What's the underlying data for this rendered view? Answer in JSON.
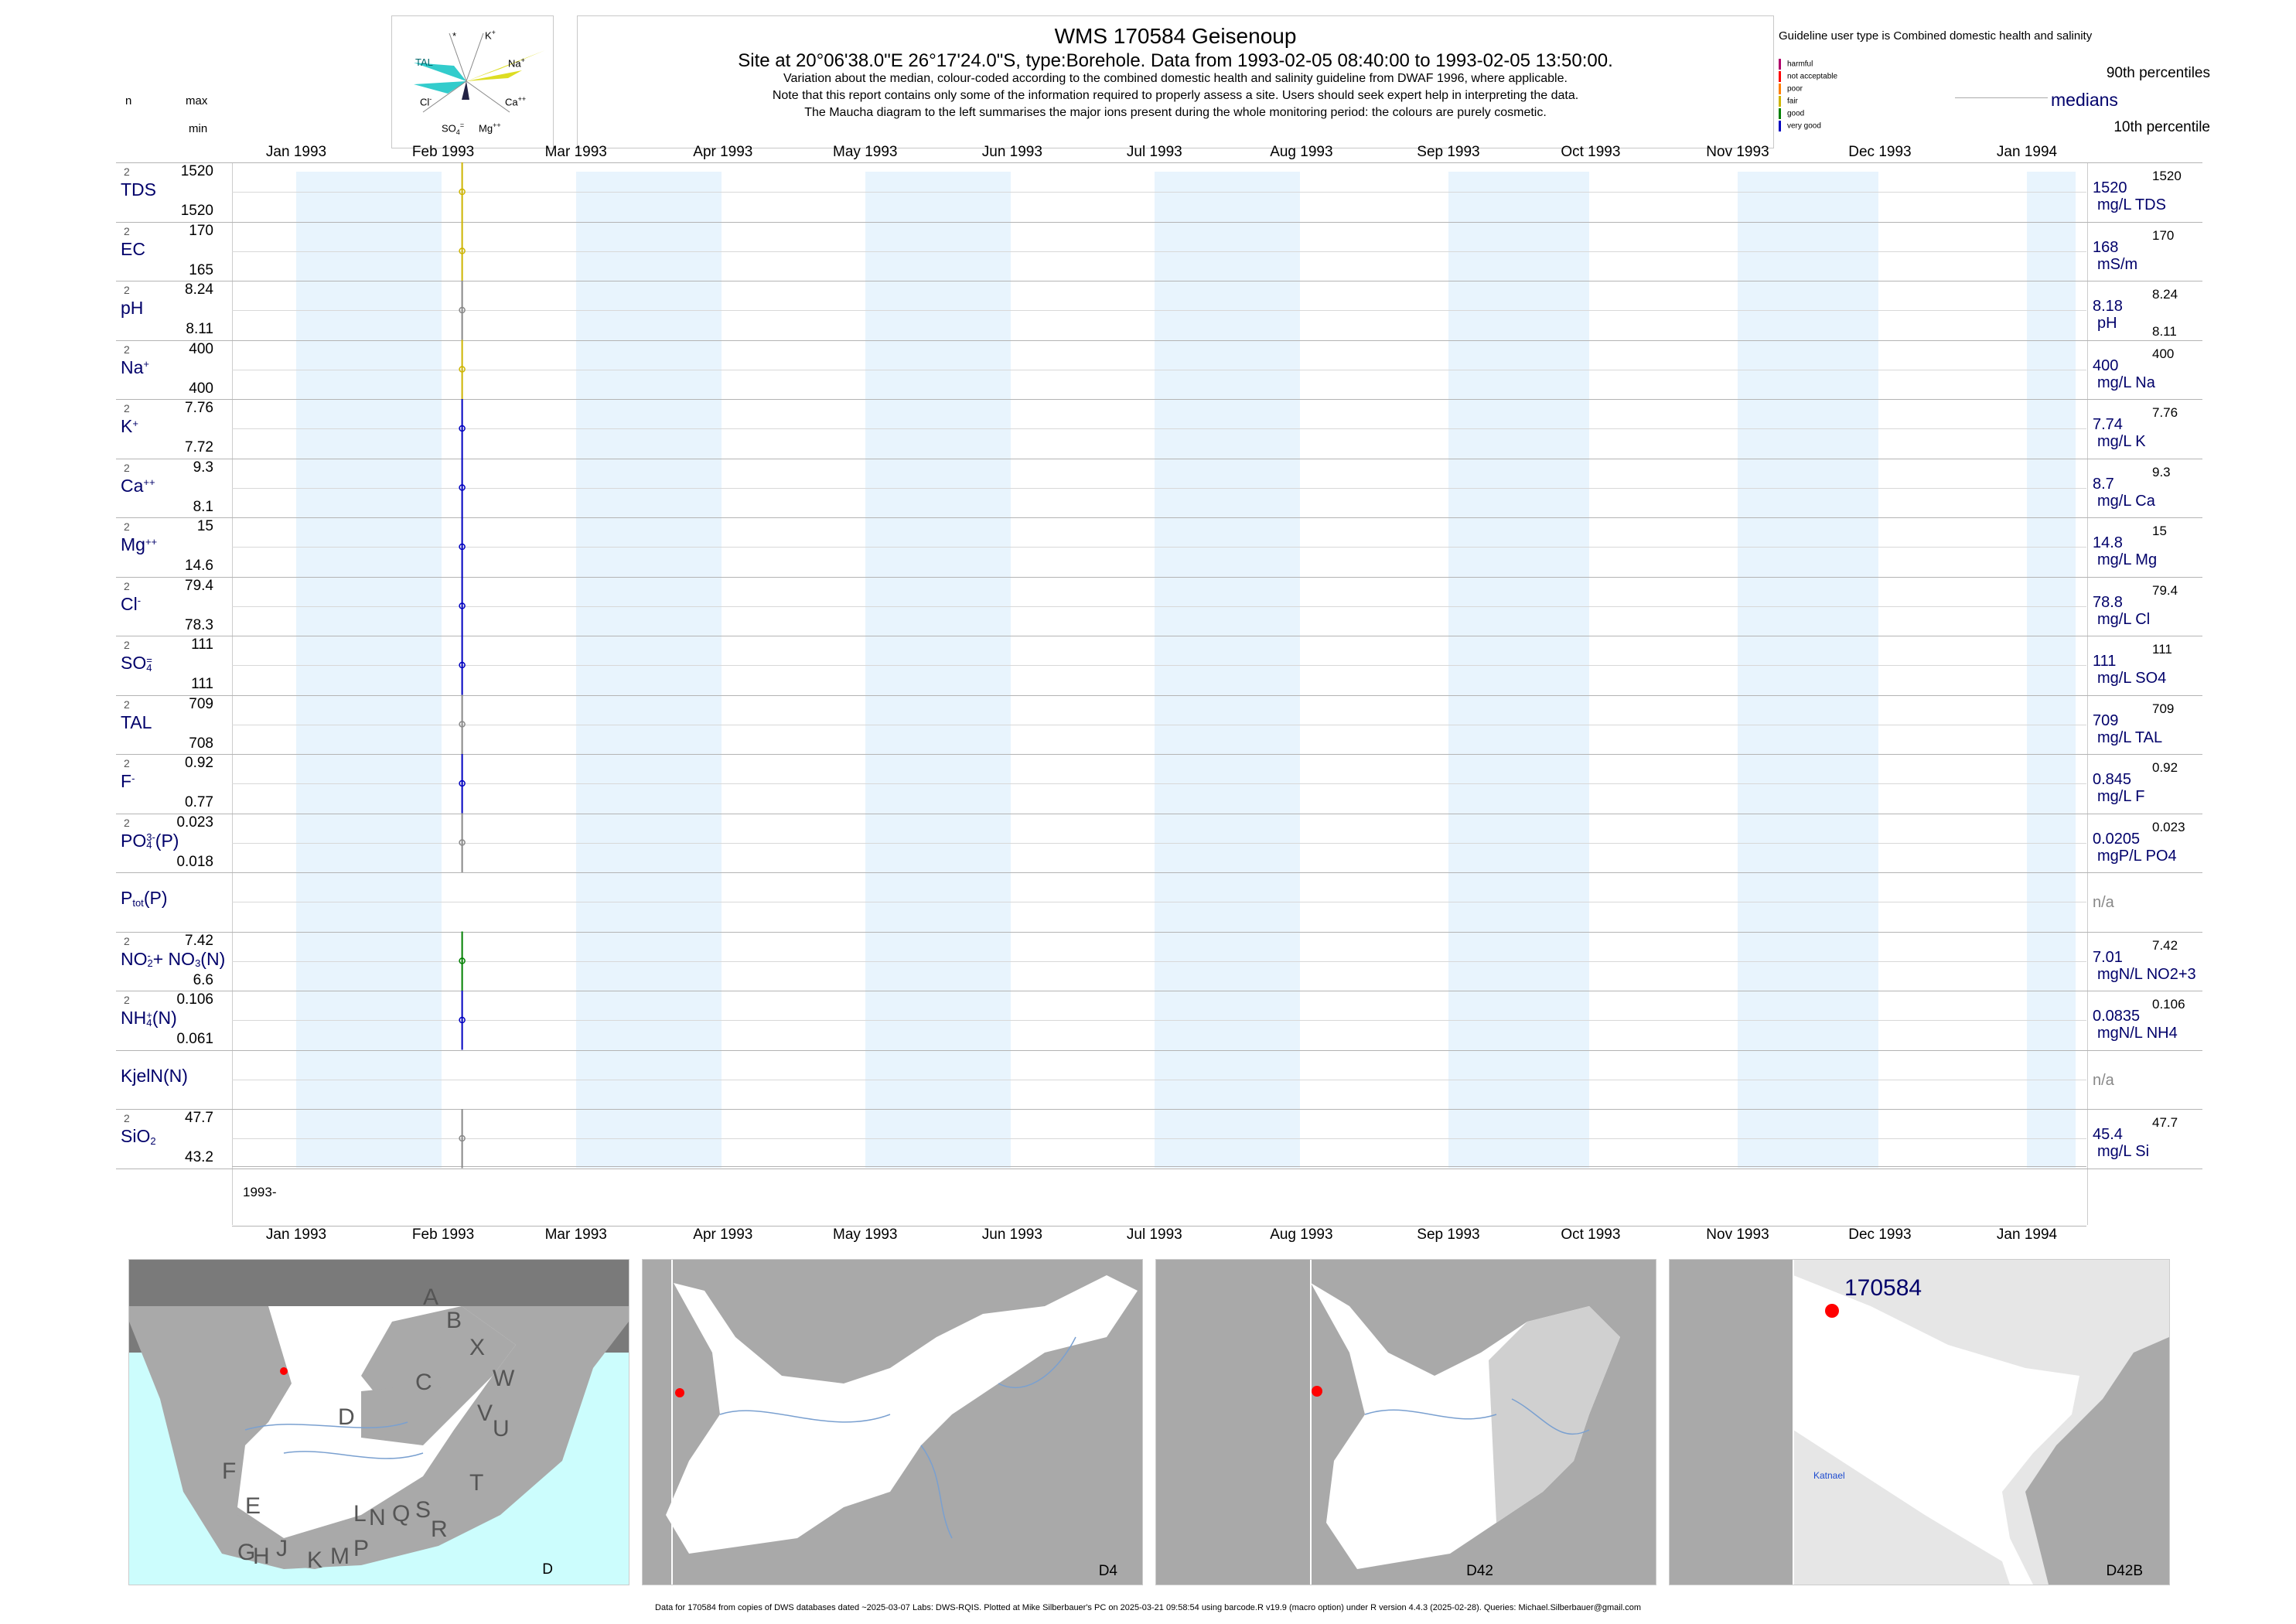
{
  "header": {
    "title": "WMS 170584  Geisenoup",
    "subtitle": "Site at 20°06'38.0\"E 26°17'24.0\"S, type:Borehole.  Data from 1993-02-05 08:40:00 to 1993-02-05 13:50:00.",
    "note1": "Variation about the median,  colour-coded according to the combined domestic health and salinity guideline from DWAF 1996, where applicable.",
    "note2": "Note that this report contains only some of the information required to properly assess a site. Users should seek expert help in interpreting the data.",
    "note3": "The Maucha diagram to the left summarises the major ions present during the whole monitoring period: the colours are purely cosmetic."
  },
  "maucha": {
    "labels": {
      "star": "*",
      "k": "K",
      "tal": "TAL",
      "na": "Na",
      "cl": "Cl",
      "ca": "Ca",
      "so4": "SO",
      "mg": "Mg"
    },
    "colors": {
      "tal": "#33cccc",
      "na": "#dddd22",
      "dark": "#222244"
    }
  },
  "col_heads": {
    "n": "n",
    "max": "max",
    "min": "min"
  },
  "legend": {
    "title": "Guideline user type is Combined domestic health and salinity",
    "items": [
      {
        "label": "harmful",
        "color": "#b0006a"
      },
      {
        "label": "not acceptable",
        "color": "#ff0000"
      },
      {
        "label": "poor",
        "color": "#ff7f00"
      },
      {
        "label": "fair",
        "color": "#cdb400"
      },
      {
        "label": "good",
        "color": "#008000"
      },
      {
        "label": "very good",
        "color": "#0000c0"
      }
    ],
    "p90": "90th percentiles",
    "medians": "medians",
    "p10": "10th percentile"
  },
  "months": [
    "Jan 1993",
    "Feb 1993",
    "Mar 1993",
    "Apr 1993",
    "May 1993",
    "Jun 1993",
    "Jul 1993",
    "Aug 1993",
    "Sep 1993",
    "Oct 1993",
    "Nov 1993",
    "Dec 1993",
    "Jan 1994"
  ],
  "year_label": "1993-",
  "map_labels": [
    "D",
    "D4",
    "D42",
    "D42B"
  ],
  "map_site": "170584",
  "map_place": "Katnael",
  "map_letters": [
    "A",
    "B",
    "X",
    "C",
    "W",
    "V",
    "U",
    "D",
    "T",
    "F",
    "E",
    "L",
    "N",
    "Q",
    "S",
    "R",
    "G",
    "H",
    "J",
    "K",
    "M",
    "P"
  ],
  "footer": "Data for 170584 from copies of DWS databases dated ~2025-03-07 Labs: DWS-RQIS. Plotted at Mike Silberbauer's PC on 2025-03-21 09:58:54 using barcode.R v19.9 (macro option) under R version 4.4.3 (2025-02-28). Queries: Michael.Silberbauer@gmail.com",
  "chart_data": {
    "type": "line",
    "x_axis": "date",
    "xlim": [
      "1993-01",
      "1994-01"
    ],
    "sample_dates": [
      "1993-02-05 08:40:00",
      "1993-02-05 13:50:00"
    ],
    "series": [
      {
        "key": "tds",
        "label": "TDS",
        "n": "2",
        "max": "1520",
        "min": "1520",
        "median": "1520",
        "unit": "mg/L TDS",
        "p90": "1520",
        "p10": "",
        "color": "#cdb400"
      },
      {
        "key": "ec",
        "label": "EC",
        "n": "2",
        "max": "170",
        "min": "165",
        "median": "168",
        "unit": "mS/m",
        "p90": "170",
        "p10": "",
        "color": "#cdb400"
      },
      {
        "key": "ph",
        "label": "pH",
        "n": "2",
        "max": "8.24",
        "min": "8.11",
        "median": "8.18",
        "unit": "pH",
        "p90": "8.24",
        "p10": "8.11",
        "color": "#888888"
      },
      {
        "key": "na",
        "label": "Na",
        "sup": "+",
        "n": "2",
        "max": "400",
        "min": "400",
        "median": "400",
        "unit": "mg/L Na",
        "p90": "400",
        "p10": "",
        "color": "#cdb400"
      },
      {
        "key": "k",
        "label": "K",
        "sup": "+",
        "n": "2",
        "max": "7.76",
        "min": "7.72",
        "median": "7.74",
        "unit": "mg/L K",
        "p90": "7.76",
        "p10": "",
        "color": "#0000c0"
      },
      {
        "key": "ca",
        "label": "Ca",
        "sup": "++",
        "n": "2",
        "max": "9.3",
        "min": "8.1",
        "median": "8.7",
        "unit": "mg/L Ca",
        "p90": "9.3",
        "p10": "",
        "color": "#0000c0"
      },
      {
        "key": "mg",
        "label": "Mg",
        "sup": "++",
        "n": "2",
        "max": "15",
        "min": "14.6",
        "median": "14.8",
        "unit": "mg/L Mg",
        "p90": "15",
        "p10": "",
        "color": "#0000c0"
      },
      {
        "key": "cl",
        "label": "Cl",
        "sup": "-",
        "n": "2",
        "max": "79.4",
        "min": "78.3",
        "median": "78.8",
        "unit": "mg/L Cl",
        "p90": "79.4",
        "p10": "",
        "color": "#0000c0"
      },
      {
        "key": "so4",
        "label": "SO",
        "sub": "4",
        "sup": "=",
        "n": "2",
        "max": "111",
        "min": "111",
        "median": "111",
        "unit": "mg/L SO4",
        "p90": "111",
        "p10": "",
        "color": "#0000c0"
      },
      {
        "key": "tal",
        "label": "TAL",
        "n": "2",
        "max": "709",
        "min": "708",
        "median": "709",
        "unit": "mg/L TAL",
        "p90": "709",
        "p10": "",
        "color": "#888888"
      },
      {
        "key": "f",
        "label": "F",
        "sup": "-",
        "n": "2",
        "max": "0.92",
        "min": "0.77",
        "median": "0.845",
        "unit": "mg/L F",
        "p90": "0.92",
        "p10": "",
        "color": "#0000c0"
      },
      {
        "key": "po4",
        "label": "PO",
        "sub": "4",
        "sup": "3-",
        "suffix": "(P)",
        "n": "2",
        "max": "0.023",
        "min": "0.018",
        "median": "0.0205",
        "unit": "mgP/L PO4",
        "p90": "0.023",
        "p10": "",
        "color": "#888888"
      },
      {
        "key": "ptot",
        "label": "P",
        "sub": "tot",
        "suffix": "(P)",
        "n": "",
        "max": "",
        "min": "",
        "median": "n/a",
        "unit": "",
        "p90": "",
        "p10": "",
        "color": ""
      },
      {
        "key": "no23",
        "label": "NO",
        "sub": "2",
        "sup": "-",
        "suffix": "+ NO",
        "sub2": "3",
        "suffix2": "(N)",
        "n": "2",
        "max": "7.42",
        "min": "6.6",
        "median": "7.01",
        "unit": "mgN/L NO2+3",
        "p90": "7.42",
        "p10": "",
        "color": "#008000"
      },
      {
        "key": "nh4",
        "label": "NH",
        "sub": "4",
        "sup": "+",
        "suffix": "(N)",
        "n": "2",
        "max": "0.106",
        "min": "0.061",
        "median": "0.0835",
        "unit": "mgN/L NH4",
        "p90": "0.106",
        "p10": "",
        "color": "#0000c0"
      },
      {
        "key": "kjel",
        "label": "KjelN(N)",
        "n": "",
        "max": "",
        "min": "",
        "median": "n/a",
        "unit": "",
        "p90": "",
        "p10": "",
        "color": ""
      },
      {
        "key": "sio2",
        "label": "SiO",
        "sub": "2",
        "n": "2",
        "max": "47.7",
        "min": "43.2",
        "median": "45.4",
        "unit": "mg/L Si",
        "p90": "47.7",
        "p10": "",
        "color": "#888888"
      }
    ]
  }
}
